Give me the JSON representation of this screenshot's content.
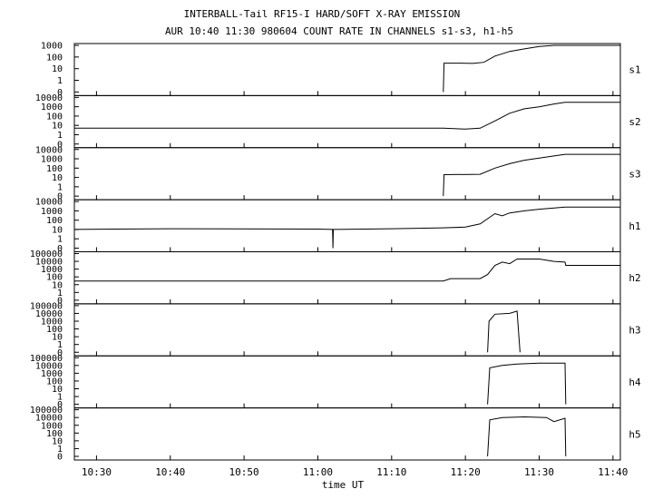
{
  "chart_data": {
    "type": "line",
    "title": "INTERBALL-Tail RF15-I HARD/SOFT X-RAY EMISSION",
    "subtitle": "AUR 10:40 11:30 980604  COUNT RATE IN CHANNELS s1-s3, h1-h5",
    "xlabel": "time UT",
    "x_ticks": [
      "10:30",
      "10:40",
      "10:50",
      "11:00",
      "11:10",
      "11:20",
      "11:30",
      "11:40"
    ],
    "xlim": [
      "10:27",
      "11:41"
    ],
    "yscale": "log",
    "grid": false,
    "series": [
      {
        "name": "s1",
        "yticks": [
          "0",
          "1",
          "10",
          "100",
          "1000"
        ],
        "ylim": [
          0,
          1000
        ],
        "points": [
          [
            "11:17",
            0
          ],
          [
            "11:17.1",
            30
          ],
          [
            "11:19",
            30
          ],
          [
            "11:21",
            28
          ],
          [
            "11:22.5",
            35
          ],
          [
            "11:24",
            120
          ],
          [
            "11:26",
            300
          ],
          [
            "11:28",
            500
          ],
          [
            "11:30",
            800
          ],
          [
            "11:32",
            1000
          ],
          [
            "11:41",
            1000
          ]
        ]
      },
      {
        "name": "s2",
        "yticks": [
          "0",
          "1",
          "10",
          "100",
          "1000",
          "10000"
        ],
        "ylim": [
          0,
          10000
        ],
        "points": [
          [
            "10:27",
            5
          ],
          [
            "10:40",
            5
          ],
          [
            "11:00",
            5
          ],
          [
            "11:10",
            5
          ],
          [
            "11:17",
            5
          ],
          [
            "11:20",
            4
          ],
          [
            "11:22",
            5
          ],
          [
            "11:24",
            30
          ],
          [
            "11:26",
            200
          ],
          [
            "11:28",
            600
          ],
          [
            "11:30",
            1000
          ],
          [
            "11:32",
            2000
          ],
          [
            "11:33.5",
            3000
          ],
          [
            "11:41",
            3000
          ]
        ]
      },
      {
        "name": "s3",
        "yticks": [
          "0",
          "1",
          "10",
          "100",
          "1000",
          "10000"
        ],
        "ylim": [
          0,
          10000
        ],
        "points": [
          [
            "11:17",
            0
          ],
          [
            "11:17.1",
            20
          ],
          [
            "11:22",
            22
          ],
          [
            "11:24",
            100
          ],
          [
            "11:26",
            300
          ],
          [
            "11:28",
            700
          ],
          [
            "11:30",
            1200
          ],
          [
            "11:32",
            2000
          ],
          [
            "11:33.5",
            3000
          ],
          [
            "11:41",
            3000
          ]
        ]
      },
      {
        "name": "h1",
        "yticks": [
          "0",
          "1",
          "10",
          "100",
          "1000",
          "10000"
        ],
        "ylim": [
          0,
          10000
        ],
        "points": [
          [
            "10:27",
            10
          ],
          [
            "10:40",
            12
          ],
          [
            "11:00",
            11
          ],
          [
            "11:02",
            10
          ],
          [
            "11:02.05",
            0
          ],
          [
            "11:02.1",
            10
          ],
          [
            "11:10",
            12
          ],
          [
            "11:17",
            15
          ],
          [
            "11:20",
            18
          ],
          [
            "11:22",
            40
          ],
          [
            "11:24",
            500
          ],
          [
            "11:25",
            300
          ],
          [
            "11:26",
            600
          ],
          [
            "11:28",
            1000
          ],
          [
            "11:30",
            1500
          ],
          [
            "11:33.5",
            2500
          ],
          [
            "11:41",
            2500
          ]
        ]
      },
      {
        "name": "h2",
        "yticks": [
          "0",
          "1",
          "10",
          "100",
          "1000",
          "10000",
          "100000"
        ],
        "ylim": [
          0,
          100000
        ],
        "points": [
          [
            "10:27",
            30
          ],
          [
            "11:17",
            30
          ],
          [
            "11:18",
            60
          ],
          [
            "11:22",
            60
          ],
          [
            "11:23",
            200
          ],
          [
            "11:24",
            3000
          ],
          [
            "11:25",
            8000
          ],
          [
            "11:26",
            5000
          ],
          [
            "11:27",
            20000
          ],
          [
            "11:30",
            20000
          ],
          [
            "11:32",
            10000
          ],
          [
            "11:33.5",
            8000
          ],
          [
            "11:33.6",
            3000
          ],
          [
            "11:41",
            3000
          ]
        ]
      },
      {
        "name": "h3",
        "yticks": [
          "0",
          "1",
          "10",
          "100",
          "1000",
          "10000",
          "100000"
        ],
        "ylim": [
          0,
          100000
        ],
        "points": [
          [
            "11:23",
            0
          ],
          [
            "11:23.2",
            1000
          ],
          [
            "11:24",
            8000
          ],
          [
            "11:26",
            10000
          ],
          [
            "11:27",
            20000
          ],
          [
            "11:27.4",
            0
          ]
        ]
      },
      {
        "name": "h4",
        "yticks": [
          "0",
          "1",
          "10",
          "100",
          "1000",
          "10000",
          "100000"
        ],
        "ylim": [
          0,
          100000
        ],
        "points": [
          [
            "11:23",
            0
          ],
          [
            "11:23.3",
            5000
          ],
          [
            "11:25",
            10000
          ],
          [
            "11:27",
            15000
          ],
          [
            "11:30",
            20000
          ],
          [
            "11:33.5",
            20000
          ],
          [
            "11:33.6",
            0
          ]
        ]
      },
      {
        "name": "h5",
        "yticks": [
          "0",
          "1",
          "10",
          "100",
          "1000",
          "10000",
          "100000"
        ],
        "ylim": [
          0,
          100000
        ],
        "points": [
          [
            "11:23",
            0
          ],
          [
            "11:23.3",
            5000
          ],
          [
            "11:25",
            10000
          ],
          [
            "11:28",
            12000
          ],
          [
            "11:31",
            10000
          ],
          [
            "11:32",
            3000
          ],
          [
            "11:33.5",
            8000
          ],
          [
            "11:33.6",
            0
          ]
        ]
      }
    ]
  }
}
